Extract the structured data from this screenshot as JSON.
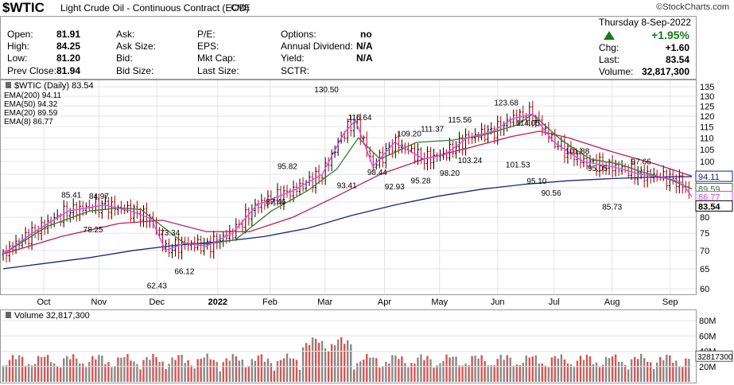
{
  "header": {
    "symbol": "$WTIC",
    "name": "Light Crude Oil - Continuous Contract (EOD)",
    "exchange": "CME",
    "logo": "©StockCharts.com"
  },
  "quote": {
    "left": [
      {
        "label": "Open:",
        "value": "81.91"
      },
      {
        "label": "High:",
        "value": "84.25"
      },
      {
        "label": "Low:",
        "value": "81.20"
      },
      {
        "label": "Prev Close:",
        "value": "81.94"
      }
    ],
    "mid1": [
      "Ask:",
      "Ask Size:",
      "Bid:",
      "Bid Size:"
    ],
    "mid2": [
      "P/E:",
      "EPS:",
      "Mkt Cap:",
      "Last Size:"
    ],
    "mid3": [
      {
        "label": "Options:",
        "value": "no"
      },
      {
        "label": "Annual Dividend:",
        "value": "N/A"
      },
      {
        "label": "Yield:",
        "value": "N/A"
      },
      {
        "label": "SCTR:",
        "value": ""
      }
    ],
    "date": "Thursday  8-Sep-2022",
    "pct_change": "+1.95%",
    "right": [
      {
        "label": "Chg:",
        "value": "+1.60"
      },
      {
        "label": "Last:",
        "value": "83.54"
      },
      {
        "label": "Volume:",
        "value": "32,817,300"
      }
    ]
  },
  "colors": {
    "up": "#000000",
    "down": "#cc0000",
    "ema200": "#1a237e",
    "ema50": "#c2185b",
    "ema20": "#2e7d32",
    "ema8": "#e040fb",
    "vol_up": "#888888",
    "vol_down": "#d9534f"
  },
  "chart_data": {
    "type": "line",
    "title": "$WTIC (Daily) 83.54",
    "series": [
      {
        "name": "EMA(200) 94.11",
        "key": "ema200",
        "color": "#1a237e",
        "points": [
          [
            0,
            65
          ],
          [
            30,
            66.5
          ],
          [
            60,
            68
          ],
          [
            90,
            70
          ],
          [
            120,
            71.5
          ],
          [
            150,
            72.5
          ],
          [
            180,
            74
          ],
          [
            210,
            76.5
          ],
          [
            240,
            80.5
          ],
          [
            270,
            84
          ],
          [
            300,
            87
          ],
          [
            330,
            89.5
          ],
          [
            360,
            91.3
          ],
          [
            390,
            92.6
          ],
          [
            420,
            93.4
          ],
          [
            450,
            94
          ],
          [
            475,
            94.11
          ]
        ]
      },
      {
        "name": "EMA(50) 94.32",
        "key": "ema50",
        "color": "#c2185b",
        "points": [
          [
            0,
            69
          ],
          [
            40,
            74
          ],
          [
            80,
            78
          ],
          [
            110,
            79
          ],
          [
            140,
            75.5
          ],
          [
            170,
            75.5
          ],
          [
            200,
            80
          ],
          [
            230,
            87
          ],
          [
            260,
            95
          ],
          [
            290,
            101
          ],
          [
            320,
            105.5
          ],
          [
            350,
            110.5
          ],
          [
            370,
            113
          ],
          [
            390,
            110
          ],
          [
            420,
            104
          ],
          [
            450,
            99
          ],
          [
            475,
            94.32
          ]
        ]
      },
      {
        "name": "EMA(20) 89.59",
        "key": "ema20",
        "color": "#2e7d32",
        "points": [
          [
            0,
            69
          ],
          [
            30,
            77
          ],
          [
            60,
            82
          ],
          [
            80,
            83
          ],
          [
            95,
            82.5
          ],
          [
            110,
            77
          ],
          [
            125,
            72
          ],
          [
            140,
            71.8
          ],
          [
            160,
            73
          ],
          [
            185,
            82
          ],
          [
            210,
            89
          ],
          [
            230,
            97
          ],
          [
            245,
            110
          ],
          [
            260,
            101
          ],
          [
            285,
            108
          ],
          [
            310,
            109
          ],
          [
            330,
            111
          ],
          [
            355,
            116
          ],
          [
            365,
            121
          ],
          [
            385,
            109
          ],
          [
            405,
            101
          ],
          [
            425,
            99
          ],
          [
            440,
            96
          ],
          [
            460,
            93
          ],
          [
            475,
            89.59
          ]
        ]
      },
      {
        "name": "EMA(8) 86.77",
        "key": "ema8",
        "color": "#e040fb",
        "points": [
          [
            0,
            69
          ],
          [
            20,
            75
          ],
          [
            45,
            82
          ],
          [
            70,
            84
          ],
          [
            88,
            82
          ],
          [
            102,
            79.5
          ],
          [
            112,
            70
          ],
          [
            125,
            72
          ],
          [
            140,
            71.2
          ],
          [
            158,
            75
          ],
          [
            175,
            84
          ],
          [
            200,
            89
          ],
          [
            220,
            95
          ],
          [
            235,
            112
          ],
          [
            243,
            118
          ],
          [
            255,
            98
          ],
          [
            270,
            108
          ],
          [
            290,
            101
          ],
          [
            305,
            103
          ],
          [
            320,
            110
          ],
          [
            338,
            113
          ],
          [
            352,
            119
          ],
          [
            365,
            121
          ],
          [
            380,
            108
          ],
          [
            400,
            100
          ],
          [
            420,
            98
          ],
          [
            440,
            95
          ],
          [
            455,
            94
          ],
          [
            468,
            92
          ],
          [
            475,
            86.77
          ]
        ]
      }
    ],
    "price_labels": [
      {
        "x": 47,
        "v": 85.41,
        "pos": "above"
      },
      {
        "x": 66,
        "v": 84.97,
        "pos": "above"
      },
      {
        "x": 62,
        "v": 78.25,
        "pos": "below"
      },
      {
        "x": 106,
        "v": 62.43,
        "pos": "below"
      },
      {
        "x": 115,
        "v": 73.34,
        "pos": "above"
      },
      {
        "x": 125,
        "v": 66.12,
        "pos": "below"
      },
      {
        "x": 196,
        "v": 95.82,
        "pos": "above"
      },
      {
        "x": 188,
        "v": 87.46,
        "pos": "below"
      },
      {
        "x": 223,
        "v": 130.5,
        "pos": "above"
      },
      {
        "x": 237,
        "v": 93.41,
        "pos": "below"
      },
      {
        "x": 246,
        "v": 116.64,
        "pos": "above"
      },
      {
        "x": 258,
        "v": 98.44,
        "pos": "below"
      },
      {
        "x": 270,
        "v": 92.93,
        "pos": "below"
      },
      {
        "x": 280,
        "v": 109.2,
        "pos": "above"
      },
      {
        "x": 288,
        "v": 95.28,
        "pos": "below"
      },
      {
        "x": 296,
        "v": 111.37,
        "pos": "above"
      },
      {
        "x": 308,
        "v": 98.2,
        "pos": "below"
      },
      {
        "x": 315,
        "v": 115.56,
        "pos": "above"
      },
      {
        "x": 322,
        "v": 103.24,
        "pos": "below"
      },
      {
        "x": 347,
        "v": 123.68,
        "pos": "above"
      },
      {
        "x": 362,
        "v": 114.05,
        "pos": "above"
      },
      {
        "x": 355,
        "v": 101.53,
        "pos": "below"
      },
      {
        "x": 368,
        "v": 95.1,
        "pos": "below"
      },
      {
        "x": 378,
        "v": 90.56,
        "pos": "below"
      },
      {
        "x": 396,
        "v": 101.88,
        "pos": "above"
      },
      {
        "x": 410,
        "v": 95.05,
        "pos": "above"
      },
      {
        "x": 420,
        "v": 85.73,
        "pos": "below"
      },
      {
        "x": 440,
        "v": 97.66,
        "pos": "above"
      }
    ],
    "price_ticks": [
      135,
      130,
      125,
      120,
      115,
      110,
      105,
      100,
      95,
      90,
      85,
      80,
      75,
      70,
      65,
      60
    ],
    "right_badges": [
      {
        "v": 94.11,
        "text": "94.11",
        "color": "#1a237e"
      },
      {
        "v": 89.59,
        "text": "89.59",
        "color": "#2e7d32"
      },
      {
        "v": 86.77,
        "text": "86.77",
        "color": "#e040fb"
      },
      {
        "v": 83.54,
        "text": "83.54",
        "color": "#000000"
      }
    ],
    "x_labels": [
      {
        "x": 28,
        "text": "Oct"
      },
      {
        "x": 66,
        "text": "Nov"
      },
      {
        "x": 106,
        "text": "Dec"
      },
      {
        "x": 148,
        "text": "2022",
        "bold": true
      },
      {
        "x": 184,
        "text": "Feb"
      },
      {
        "x": 222,
        "text": "Mar"
      },
      {
        "x": 263,
        "text": "Apr"
      },
      {
        "x": 301,
        "text": "May"
      },
      {
        "x": 341,
        "text": "Jun"
      },
      {
        "x": 380,
        "text": "Jul"
      },
      {
        "x": 420,
        "text": "Aug"
      },
      {
        "x": 460,
        "text": "Sep"
      }
    ],
    "volume": {
      "title": "Volume 32,817,300",
      "ticks": [
        {
          "v": 80,
          "text": "80M"
        },
        {
          "v": 60,
          "text": "60M"
        },
        {
          "v": 40,
          "text": "40M"
        },
        {
          "v": 20,
          "text": "20M"
        }
      ],
      "last_badge": "32817300"
    }
  }
}
